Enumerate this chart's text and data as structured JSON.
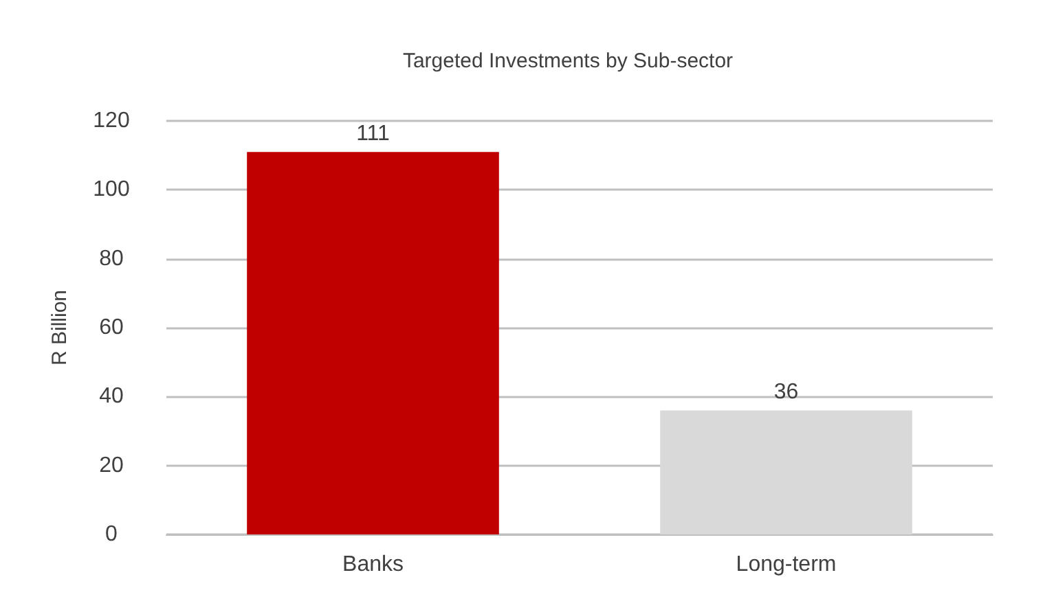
{
  "chart_data": {
    "type": "bar",
    "title": "Targeted Investments by Sub-sector",
    "ylabel": "R Billion",
    "categories": [
      "Banks",
      "Long-term"
    ],
    "values": [
      111,
      36
    ],
    "colors": [
      "#c00000",
      "#d9d9d9"
    ],
    "ylim": [
      0,
      120
    ],
    "yticks": [
      0,
      20,
      40,
      60,
      80,
      100,
      120
    ],
    "grid": "y",
    "data_labels": true
  }
}
